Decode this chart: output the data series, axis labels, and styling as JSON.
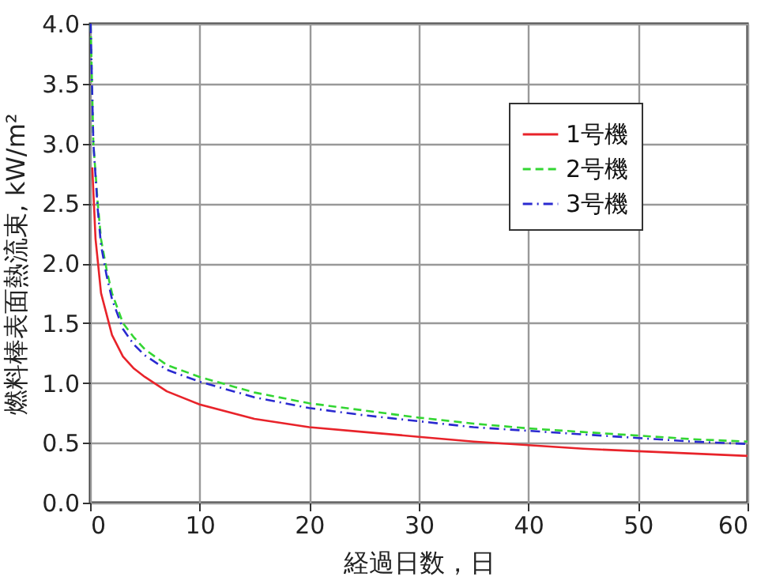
{
  "chart_data": {
    "type": "line",
    "xlabel": "経過日数，日",
    "ylabel": "燃料棒表面熱流束, kW/m²",
    "xlim": [
      0,
      60
    ],
    "xticks": [
      0,
      10,
      20,
      30,
      40,
      50,
      60
    ],
    "ylim": [
      0,
      4.0
    ],
    "yticks": [
      {
        "value": 0,
        "label": "0.0"
      },
      {
        "value": 0.5,
        "label": "0.5"
      },
      {
        "value": 1,
        "label": "1.0"
      },
      {
        "value": 1.5,
        "label": "1.5"
      },
      {
        "value": 2,
        "label": "2.0"
      },
      {
        "value": 2.5,
        "label": "2.5"
      },
      {
        "value": 3,
        "label": "3.0"
      },
      {
        "value": 3.5,
        "label": "3.5"
      },
      {
        "value": 4,
        "label": "4.0"
      }
    ],
    "grid": true,
    "legend": "top right",
    "marker": "none",
    "series": [
      {
        "name": "1号機",
        "color": "#e8232a",
        "line_style": "solid",
        "x": [
          0.2,
          0.5,
          1,
          2,
          3,
          4,
          5,
          7,
          10,
          15,
          20,
          25,
          30,
          35,
          40,
          45,
          50,
          55,
          60
        ],
        "values": [
          2.8,
          2.2,
          1.75,
          1.4,
          1.22,
          1.12,
          1.05,
          0.93,
          0.82,
          0.7,
          0.63,
          0.59,
          0.55,
          0.51,
          0.48,
          0.45,
          0.43,
          0.41,
          0.39
        ]
      },
      {
        "name": "2号機",
        "color": "#33d633",
        "line_style": "dashed",
        "x": [
          0.05,
          0.3,
          0.7,
          1,
          1.5,
          2,
          3,
          4,
          5,
          7,
          10,
          15,
          20,
          25,
          30,
          35,
          40,
          45,
          50,
          55,
          60
        ],
        "values": [
          4.0,
          3.0,
          2.5,
          2.2,
          1.95,
          1.75,
          1.5,
          1.38,
          1.28,
          1.15,
          1.05,
          0.92,
          0.83,
          0.77,
          0.71,
          0.66,
          0.62,
          0.59,
          0.56,
          0.53,
          0.51
        ]
      },
      {
        "name": "3号機",
        "color": "#2a2ad0",
        "line_style": "dashdot",
        "x": [
          0.05,
          0.3,
          0.7,
          1,
          1.5,
          2,
          3,
          4,
          5,
          7,
          10,
          15,
          20,
          25,
          30,
          35,
          40,
          45,
          50,
          55,
          60
        ],
        "values": [
          4.0,
          3.0,
          2.45,
          2.15,
          1.9,
          1.7,
          1.45,
          1.32,
          1.23,
          1.11,
          1.01,
          0.88,
          0.79,
          0.73,
          0.68,
          0.63,
          0.6,
          0.57,
          0.54,
          0.51,
          0.49
        ]
      }
    ]
  }
}
